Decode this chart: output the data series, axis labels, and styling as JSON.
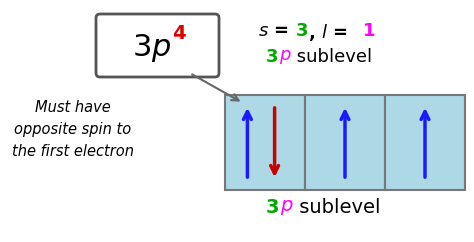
{
  "bg_color": "#ffffff",
  "italic_text": "Must have\nopposite spin to\nthe first electron",
  "cell_fill": "#add8e6",
  "cell_edge": "#777777",
  "arrow_up_color": "#1a1aff",
  "arrow_down_color": "#cc0000",
  "s_num_color": "#00aa00",
  "l_num_color": "#ff00ff",
  "sublevel_3_color": "#00aa00",
  "sublevel_p_color": "#ff00ff",
  "sublevel_text_color": "#000000",
  "box_3_color": "#000000",
  "box_p_color": "#000000",
  "box_4_color": "#dd0000",
  "connector_color": "#666666"
}
